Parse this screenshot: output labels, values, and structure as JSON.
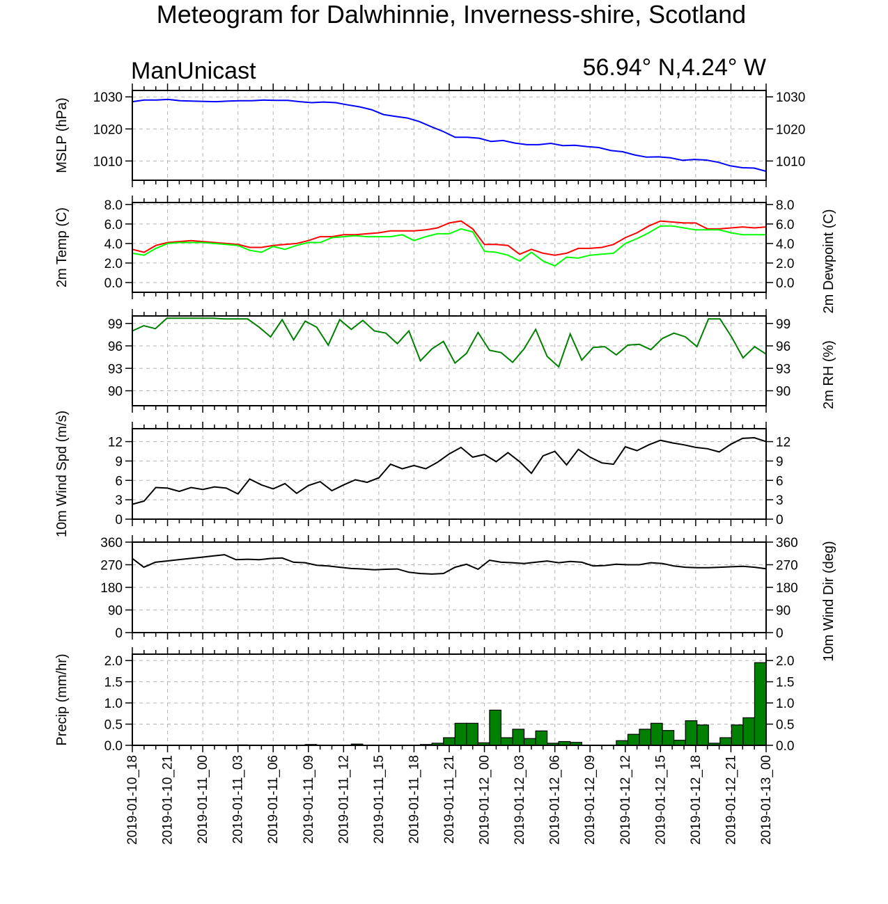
{
  "title": "Meteogram for Dalwhinnie, Inverness-shire, Scotland",
  "model_label": "ManUnicast",
  "location_label": "56.94° N,4.24° W",
  "time_labels": [
    "2019-01-10_18",
    "2019-01-10_21",
    "2019-01-11_00",
    "2019-01-11_03",
    "2019-01-11_06",
    "2019-01-11_09",
    "2019-01-11_12",
    "2019-01-11_15",
    "2019-01-11_18",
    "2019-01-11_21",
    "2019-01-12_00",
    "2019-01-12_03",
    "2019-01-12_06",
    "2019-01-12_09",
    "2019-01-12_12",
    "2019-01-12_15",
    "2019-01-12_18",
    "2019-01-12_21",
    "2019-01-13_00"
  ],
  "colors": {
    "mslp": "#0000ff",
    "temp": "#ff0000",
    "dewpoint": "#00ff00",
    "rh": "#008000",
    "wind": "#000000",
    "precip": "#008000",
    "grid": "#b3b3b3"
  },
  "chart_data": [
    {
      "type": "line",
      "ylabel": "MSLP (hPa)",
      "ylim": [
        1004,
        1032
      ],
      "yticks": [
        1010,
        1020,
        1030
      ],
      "grid": true,
      "series": [
        {
          "values": [
            1028.5,
            1029,
            1029,
            1029.2,
            1028.8,
            1028.7,
            1028.6,
            1028.5,
            1028.7,
            1028.8,
            1028.8,
            1029.0,
            1028.9,
            1028.9,
            1028.5,
            1028.2,
            1028.4,
            1028.2,
            1027.5,
            1026.9,
            1026.0,
            1024.5,
            1023.9,
            1023.4,
            1022.3,
            1020.7,
            1019.2,
            1017.4,
            1017.4,
            1017.1,
            1016.1,
            1016.4,
            1015.6,
            1015.1,
            1015.1,
            1015.5,
            1014.8,
            1014.9,
            1014.5,
            1014.2,
            1013.3,
            1012.9,
            1011.9,
            1011.2,
            1011.3,
            1011.0,
            1010.2,
            1010.5,
            1010.3,
            1009.6,
            1008.5,
            1007.9,
            1007.8,
            1006.8
          ]
        }
      ]
    },
    {
      "type": "line",
      "ylabel": "2m Temp (C)",
      "ylabel_right": "2m Dewpoint (C)",
      "ylim": [
        -1,
        8.2
      ],
      "yticks": [
        0.0,
        2.0,
        4.0,
        6.0,
        8.0
      ],
      "ytick_labels": [
        "0.0",
        "2.0",
        "4.0",
        "6.0",
        "8.0"
      ],
      "grid": true,
      "series": [
        {
          "values": [
            3.4,
            3.1,
            3.8,
            4.1,
            4.2,
            4.3,
            4.2,
            4.1,
            4.0,
            3.9,
            3.6,
            3.6,
            3.8,
            3.9,
            4.0,
            4.3,
            4.7,
            4.7,
            4.9,
            4.9,
            5.0,
            5.1,
            5.3,
            5.3,
            5.3,
            5.4,
            5.6,
            6.1,
            6.3,
            5.5,
            3.9,
            3.9,
            3.8,
            2.9,
            3.4,
            3.0,
            2.8,
            3.0,
            3.5,
            3.5,
            3.6,
            3.9,
            4.6,
            5.1,
            5.8,
            6.3,
            6.2,
            6.1,
            6.1,
            5.5,
            5.5,
            5.6,
            5.7,
            5.6,
            5.7
          ]
        },
        {
          "values": [
            3.0,
            2.8,
            3.5,
            4.0,
            4.1,
            4.1,
            4.1,
            4.0,
            3.9,
            3.8,
            3.3,
            3.1,
            3.7,
            3.4,
            3.8,
            4.1,
            4.1,
            4.6,
            4.7,
            4.8,
            4.7,
            4.7,
            4.7,
            4.9,
            4.3,
            4.7,
            5.0,
            5.0,
            5.5,
            5.2,
            3.2,
            3.1,
            2.8,
            2.2,
            3.1,
            2.2,
            1.7,
            2.6,
            2.5,
            2.8,
            2.9,
            3.0,
            4.0,
            4.5,
            5.1,
            5.8,
            5.8,
            5.6,
            5.4,
            5.4,
            5.4,
            5.1,
            4.9,
            4.9,
            4.9
          ]
        }
      ]
    },
    {
      "type": "line",
      "ylabel_right": "2m RH (%)",
      "ylim": [
        88,
        100
      ],
      "yticks": [
        90,
        93,
        96,
        99
      ],
      "grid": true,
      "series": [
        {
          "values": [
            98.0,
            98.7,
            98.3,
            99.7,
            99.7,
            99.7,
            99.7,
            99.7,
            99.6,
            99.6,
            99.6,
            98.5,
            97.2,
            99.5,
            96.8,
            99.3,
            98.5,
            96.1,
            99.5,
            98.2,
            99.4,
            98.0,
            97.7,
            96.3,
            98.0,
            94.0,
            95.6,
            96.6,
            93.7,
            95.0,
            97.8,
            95.4,
            95.1,
            93.8,
            95.6,
            98.2,
            94.6,
            93.2,
            97.6,
            94.1,
            95.8,
            95.9,
            94.8,
            96.1,
            96.2,
            95.5,
            97.0,
            97.7,
            97.2,
            95.9,
            99.6,
            99.6,
            97.2,
            94.4,
            95.9,
            94.9
          ]
        }
      ]
    },
    {
      "type": "line",
      "ylabel": "10m Wind Spd (m/s)",
      "ylim": [
        0,
        14
      ],
      "yticks": [
        0,
        3,
        6,
        9,
        12
      ],
      "grid": true,
      "series": [
        {
          "values": [
            2.3,
            2.8,
            4.9,
            4.8,
            4.3,
            4.9,
            4.6,
            5.0,
            4.8,
            3.9,
            6.2,
            5.3,
            4.7,
            5.5,
            4.0,
            5.2,
            5.8,
            4.4,
            5.3,
            6.1,
            5.7,
            6.4,
            8.5,
            7.8,
            8.3,
            7.8,
            8.8,
            10.1,
            11.1,
            9.6,
            10.0,
            8.9,
            10.3,
            8.9,
            7.1,
            9.8,
            10.5,
            8.4,
            10.8,
            9.6,
            8.7,
            8.5,
            11.2,
            10.6,
            11.5,
            12.2,
            11.8,
            11.5,
            11.1,
            10.9,
            10.4,
            11.6,
            12.5,
            12.6,
            12.0
          ]
        }
      ]
    },
    {
      "type": "line",
      "ylabel_right": "10m Wind Dir (deg)",
      "ylim": [
        0,
        360
      ],
      "yticks": [
        0,
        90,
        180,
        270,
        360
      ],
      "grid": true,
      "series": [
        {
          "values": [
            295,
            260,
            280,
            285,
            290,
            295,
            300,
            305,
            310,
            290,
            292,
            290,
            295,
            297,
            280,
            278,
            268,
            265,
            260,
            255,
            253,
            250,
            252,
            253,
            240,
            235,
            233,
            235,
            260,
            272,
            252,
            288,
            280,
            278,
            275,
            280,
            285,
            278,
            283,
            280,
            265,
            267,
            272,
            270,
            270,
            278,
            275,
            265,
            260,
            258,
            258,
            260,
            262,
            264,
            260,
            254
          ]
        }
      ]
    },
    {
      "type": "bar",
      "ylabel": "Precip (mm/hr)",
      "ylim": [
        0,
        2.15
      ],
      "yticks": [
        0.0,
        0.5,
        1.0,
        1.5,
        2.0
      ],
      "ytick_labels": [
        "0.0",
        "0.5",
        "1.0",
        "1.5",
        "2.0"
      ],
      "grid": true,
      "series": [
        {
          "values": [
            0,
            0,
            0,
            0,
            0,
            0,
            0,
            0,
            0,
            0.01,
            0,
            0,
            0,
            0,
            0,
            0.02,
            0,
            0,
            0,
            0.03,
            0,
            0,
            0,
            0,
            0,
            0.02,
            0.05,
            0.18,
            0.52,
            0.52,
            0.06,
            0.83,
            0.18,
            0.38,
            0.16,
            0.34,
            0.05,
            0.09,
            0.07,
            0,
            0,
            0,
            0.11,
            0.26,
            0.38,
            0.52,
            0.35,
            0.12,
            0.58,
            0.48,
            0.05,
            0.18,
            0.48,
            0.65,
            1.95
          ]
        }
      ]
    }
  ]
}
